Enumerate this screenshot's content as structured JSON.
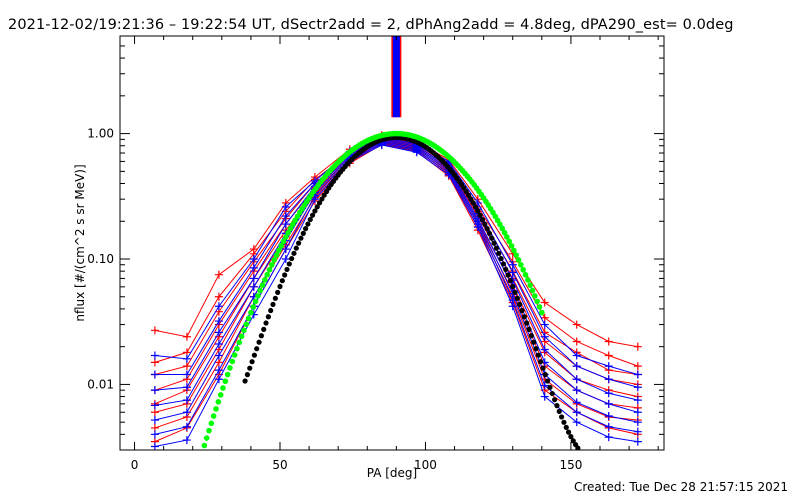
{
  "title": "2021-12-02/19:21:36 – 19:22:54 UT, dSectr2add = 2, dPhAng2add = 4.8deg, dPA290_est=  0.0deg",
  "footer": "Created: Tue Dec 28 21:57:15 2021",
  "chart_data": {
    "type": "line",
    "xlabel": "PA [deg]",
    "ylabel": "nflux [#/(cm^2 s sr MeV)]",
    "xlim": [
      -5,
      182
    ],
    "ylim": [
      0.003,
      6
    ],
    "yscale": "log",
    "xticks": [
      0,
      50,
      100,
      150
    ],
    "xtick_labels": [
      "0",
      "50",
      "100",
      "150"
    ],
    "yticks": [
      0.01,
      0.1,
      1.0
    ],
    "ytick_labels": [
      "0.01",
      "0.10",
      "1.00"
    ],
    "grid": false,
    "colors": {
      "red": "#ff0000",
      "blue": "#0000ff",
      "black": "#000000",
      "green": "#00ff00"
    },
    "vertical_marker": {
      "x": 90,
      "y_range": [
        1.35,
        6
      ],
      "colors": [
        "#ff0000",
        "#0000ff"
      ]
    },
    "pa": [
      7,
      18,
      29,
      41,
      52,
      62,
      74,
      85,
      97,
      108,
      118,
      130,
      141,
      152,
      163,
      173
    ],
    "red_spectra": [
      [
        0.027,
        0.024,
        0.075,
        0.12,
        0.28,
        0.45,
        0.75,
        0.97,
        0.86,
        0.62,
        0.3,
        0.11,
        0.045,
        0.03,
        0.022,
        0.02
      ],
      [
        0.015,
        0.018,
        0.05,
        0.11,
        0.24,
        0.43,
        0.7,
        0.95,
        0.84,
        0.6,
        0.26,
        0.095,
        0.034,
        0.022,
        0.017,
        0.014
      ],
      [
        0.012,
        0.014,
        0.038,
        0.095,
        0.21,
        0.4,
        0.68,
        0.92,
        0.82,
        0.56,
        0.24,
        0.08,
        0.026,
        0.018,
        0.013,
        0.012
      ],
      [
        0.009,
        0.011,
        0.03,
        0.08,
        0.19,
        0.37,
        0.66,
        0.9,
        0.8,
        0.54,
        0.22,
        0.07,
        0.022,
        0.014,
        0.011,
        0.01
      ],
      [
        0.007,
        0.009,
        0.024,
        0.07,
        0.17,
        0.35,
        0.64,
        0.88,
        0.78,
        0.52,
        0.2,
        0.062,
        0.018,
        0.011,
        0.009,
        0.008
      ],
      [
        0.006,
        0.007,
        0.019,
        0.06,
        0.15,
        0.33,
        0.62,
        0.86,
        0.76,
        0.5,
        0.19,
        0.055,
        0.014,
        0.009,
        0.007,
        0.0065
      ],
      [
        0.0045,
        0.0055,
        0.015,
        0.05,
        0.13,
        0.31,
        0.6,
        0.84,
        0.74,
        0.48,
        0.18,
        0.05,
        0.011,
        0.007,
        0.0055,
        0.0052
      ],
      [
        0.0035,
        0.0045,
        0.012,
        0.042,
        0.12,
        0.29,
        0.58,
        0.82,
        0.72,
        0.46,
        0.17,
        0.045,
        0.009,
        0.006,
        0.0045,
        0.004
      ]
    ],
    "blue_spectra": [
      [
        0.017,
        0.016,
        0.042,
        0.1,
        0.26,
        0.42,
        0.72,
        0.93,
        0.83,
        0.6,
        0.28,
        0.09,
        0.03,
        0.017,
        0.014,
        0.012
      ],
      [
        0.012,
        0.012,
        0.032,
        0.085,
        0.22,
        0.4,
        0.7,
        0.91,
        0.81,
        0.58,
        0.25,
        0.078,
        0.024,
        0.014,
        0.011,
        0.0095
      ],
      [
        0.009,
        0.0095,
        0.026,
        0.07,
        0.19,
        0.38,
        0.68,
        0.89,
        0.79,
        0.55,
        0.23,
        0.068,
        0.019,
        0.011,
        0.0085,
        0.0075
      ],
      [
        0.0068,
        0.0075,
        0.021,
        0.06,
        0.16,
        0.36,
        0.66,
        0.87,
        0.77,
        0.53,
        0.21,
        0.06,
        0.015,
        0.009,
        0.007,
        0.006
      ],
      [
        0.0052,
        0.006,
        0.017,
        0.05,
        0.14,
        0.34,
        0.64,
        0.85,
        0.75,
        0.51,
        0.2,
        0.053,
        0.012,
        0.0072,
        0.0056,
        0.005
      ],
      [
        0.004,
        0.0046,
        0.013,
        0.042,
        0.12,
        0.32,
        0.62,
        0.83,
        0.73,
        0.49,
        0.19,
        0.047,
        0.0098,
        0.006,
        0.0046,
        0.0042
      ],
      [
        0.0032,
        0.0036,
        0.011,
        0.036,
        0.1,
        0.3,
        0.6,
        0.81,
        0.71,
        0.47,
        0.18,
        0.042,
        0.008,
        0.005,
        0.0038,
        0.0035
      ]
    ],
    "black_fit": {
      "center": 90,
      "peak": 0.93,
      "sigma": 17,
      "floor": 0.002,
      "x_range": [
        38,
        165
      ]
    },
    "green_fit": {
      "center": 90,
      "peak": 1.0,
      "sigma": 19.5,
      "x_range": [
        20,
        140
      ]
    }
  }
}
